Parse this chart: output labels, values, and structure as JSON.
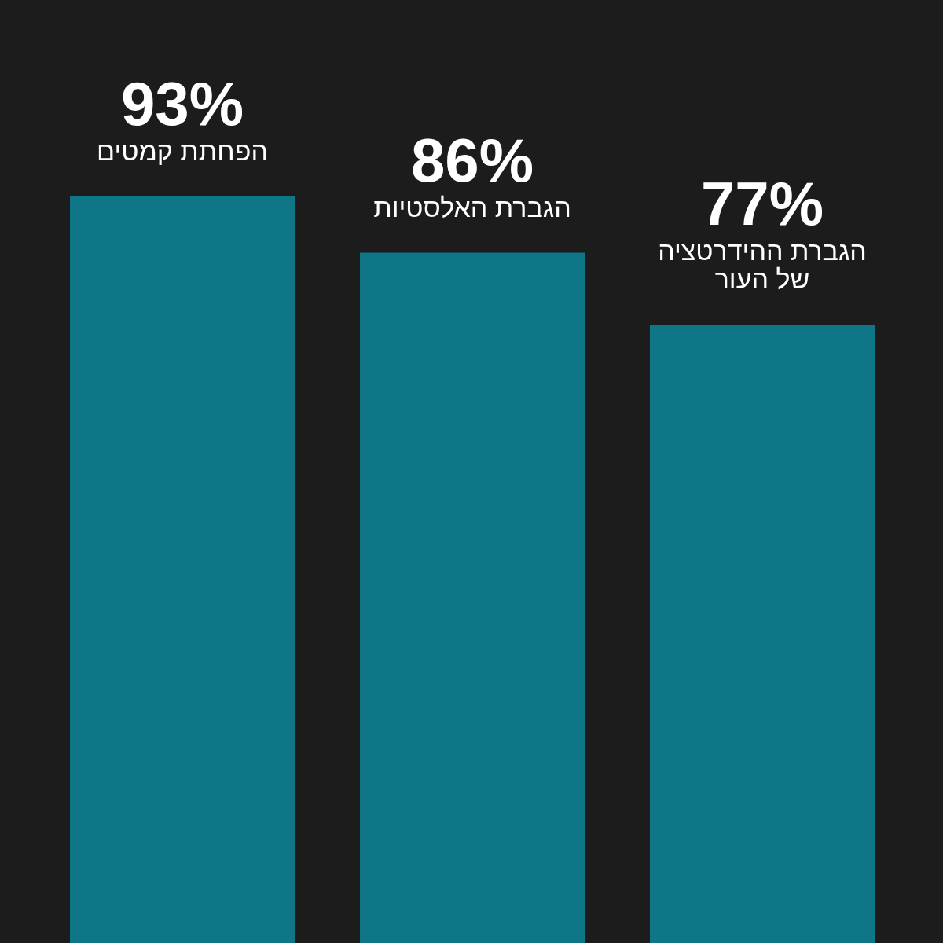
{
  "chart_data": {
    "type": "bar",
    "categories": [
      "הפחתת קמטים",
      "הגברת האלסטיות",
      "הגברת ההידרטציה של העור"
    ],
    "values": [
      93,
      86,
      77
    ],
    "value_labels": [
      "93%",
      "86%",
      "77%"
    ],
    "color": "#0e7686"
  }
}
